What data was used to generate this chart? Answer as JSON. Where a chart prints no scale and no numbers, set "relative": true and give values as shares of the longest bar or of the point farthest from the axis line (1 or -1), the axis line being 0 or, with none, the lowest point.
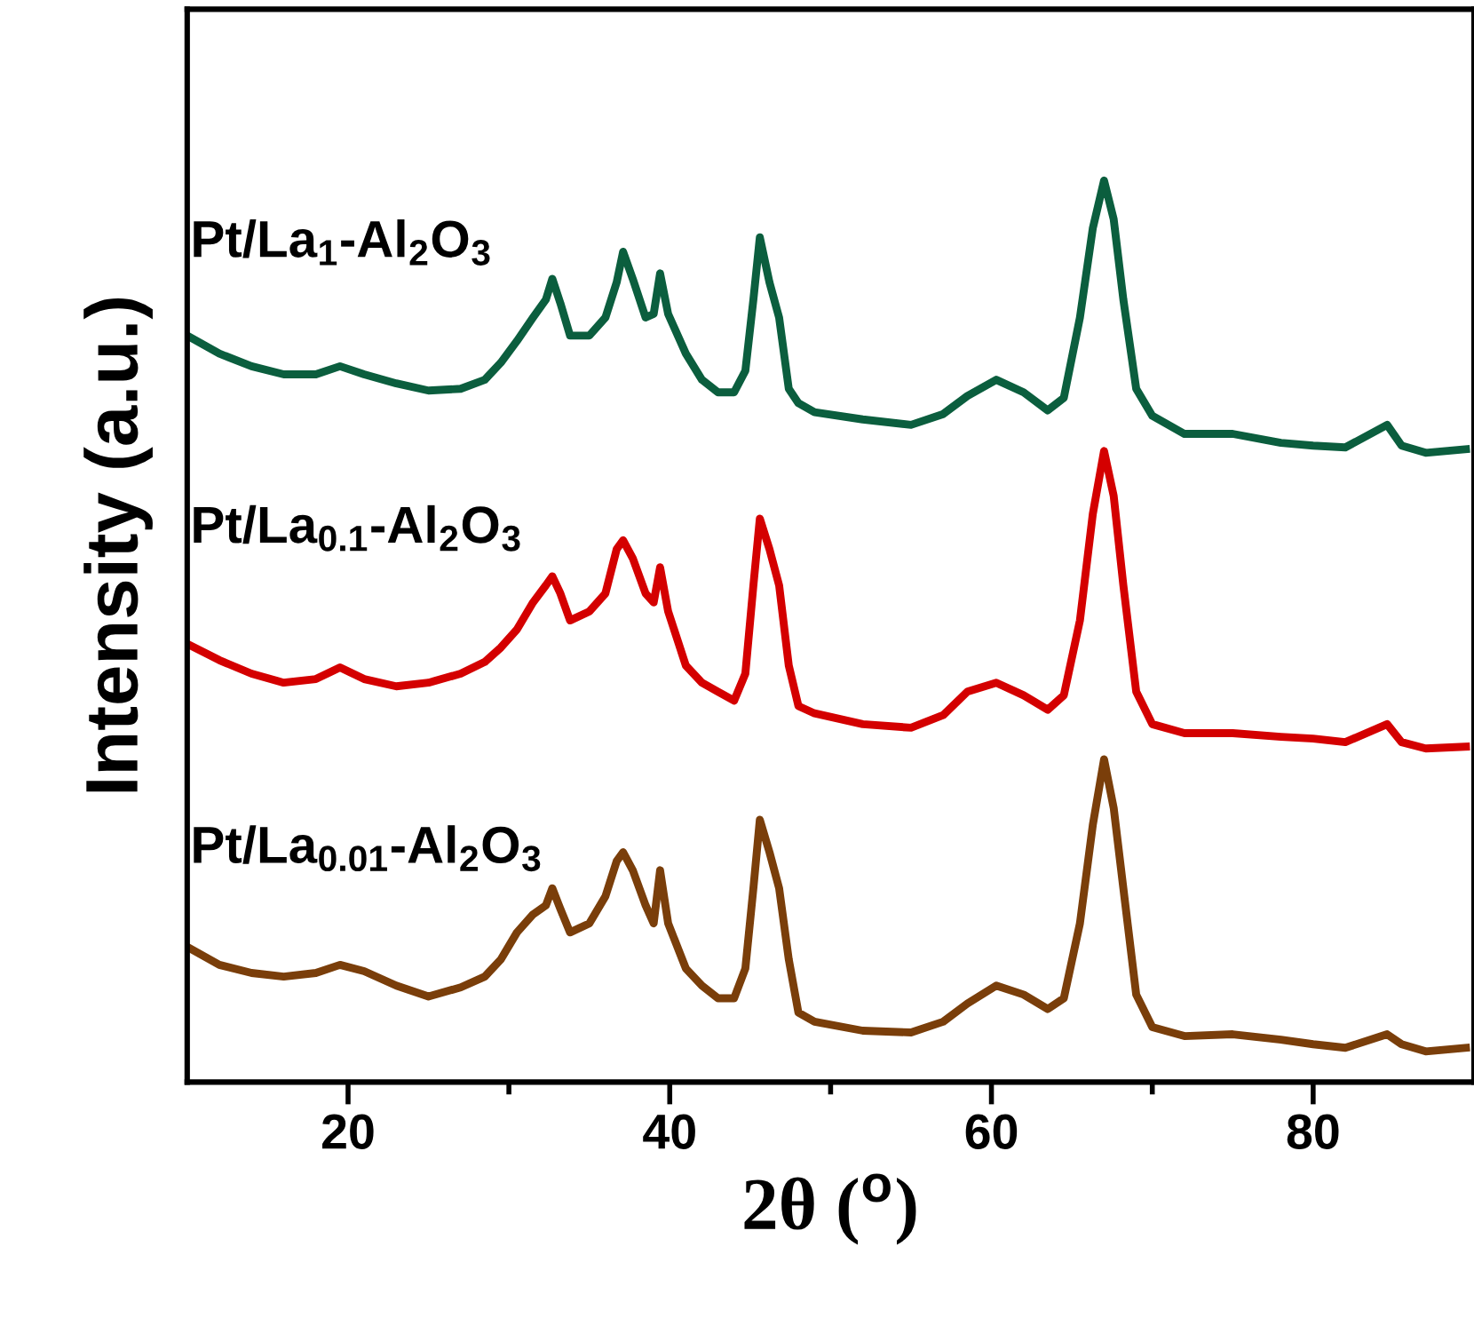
{
  "chart_data": {
    "type": "line",
    "relative": true,
    "xlabel": "2θ ($^{o}$)",
    "ylabel": "Intensity (a.u.)",
    "xlim": [
      10,
      90
    ],
    "xticks": [
      20,
      {
        "value": 30,
        "label": null
      },
      40,
      {
        "value": 50,
        "label": null
      },
      60,
      {
        "value": 70,
        "label": null
      },
      80
    ],
    "x": [
      10,
      12,
      14,
      16,
      18,
      19.5,
      21,
      23,
      25,
      27,
      28.5,
      29.5,
      30.5,
      31.5,
      32.3,
      32.7,
      33.2,
      33.8,
      35,
      36,
      36.7,
      37.1,
      37.7,
      38.5,
      39,
      39.4,
      39.9,
      41,
      42,
      43,
      44,
      44.7,
      45.2,
      45.6,
      46.2,
      46.8,
      47.4,
      48,
      49,
      52,
      55,
      57,
      58.5,
      60.3,
      62,
      63.5,
      64.5,
      65.5,
      66.3,
      67,
      67.6,
      68.2,
      69,
      70,
      72,
      75,
      78,
      80,
      82,
      84.6,
      85.5,
      87,
      89.5
    ],
    "grid": false,
    "legend": false,
    "marker": "none",
    "line_style": "solid",
    "series": [
      {
        "name": "Pt/La$_{1}$-Al$_{2}$O$_{3}$",
        "color": "#0b5e3e",
        "values": [
          0.828,
          0.808,
          0.794,
          0.785,
          0.785,
          0.794,
          0.785,
          0.775,
          0.767,
          0.769,
          0.779,
          0.798,
          0.822,
          0.848,
          0.868,
          0.891,
          0.864,
          0.828,
          0.828,
          0.848,
          0.887,
          0.921,
          0.891,
          0.848,
          0.852,
          0.897,
          0.852,
          0.808,
          0.779,
          0.765,
          0.765,
          0.789,
          0.868,
          0.937,
          0.887,
          0.848,
          0.769,
          0.753,
          0.743,
          0.735,
          0.729,
          0.741,
          0.761,
          0.779,
          0.765,
          0.745,
          0.759,
          0.848,
          0.947,
          1.0,
          0.957,
          0.868,
          0.769,
          0.739,
          0.719,
          0.719,
          0.709,
          0.706,
          0.704,
          0.729,
          0.706,
          0.698,
          0.702
        ]
      },
      {
        "name": "Pt/La$_{0.1}$-Al$_{2}$O$_{3}$",
        "color": "#d40000",
        "values": [
          0.486,
          0.468,
          0.453,
          0.443,
          0.447,
          0.46,
          0.447,
          0.439,
          0.443,
          0.453,
          0.466,
          0.482,
          0.502,
          0.532,
          0.551,
          0.561,
          0.542,
          0.512,
          0.522,
          0.542,
          0.591,
          0.601,
          0.581,
          0.542,
          0.532,
          0.571,
          0.522,
          0.462,
          0.443,
          0.433,
          0.423,
          0.453,
          0.551,
          0.625,
          0.591,
          0.551,
          0.462,
          0.417,
          0.409,
          0.397,
          0.393,
          0.407,
          0.433,
          0.443,
          0.429,
          0.413,
          0.429,
          0.512,
          0.63,
          0.7,
          0.65,
          0.551,
          0.433,
          0.397,
          0.387,
          0.387,
          0.383,
          0.381,
          0.377,
          0.397,
          0.377,
          0.37,
          0.372
        ]
      },
      {
        "name": "Pt/La$_{0.01}$-Al$_{2}$O$_{3}$",
        "color": "#7a3e0a",
        "values": [
          0.15,
          0.13,
          0.121,
          0.117,
          0.121,
          0.13,
          0.123,
          0.107,
          0.095,
          0.105,
          0.117,
          0.136,
          0.166,
          0.186,
          0.196,
          0.215,
          0.192,
          0.166,
          0.176,
          0.206,
          0.245,
          0.255,
          0.235,
          0.196,
          0.176,
          0.235,
          0.176,
          0.126,
          0.107,
          0.093,
          0.093,
          0.126,
          0.215,
          0.291,
          0.255,
          0.215,
          0.136,
          0.077,
          0.067,
          0.057,
          0.055,
          0.067,
          0.087,
          0.107,
          0.097,
          0.081,
          0.093,
          0.176,
          0.285,
          0.358,
          0.304,
          0.215,
          0.097,
          0.061,
          0.051,
          0.053,
          0.047,
          0.042,
          0.038,
          0.053,
          0.042,
          0.034,
          0.038
        ]
      }
    ]
  }
}
